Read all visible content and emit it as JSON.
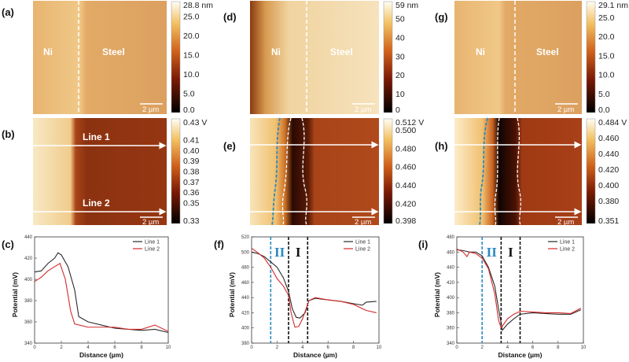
{
  "colors": {
    "line1": "#2a2a2a",
    "line2": "#d42a2a",
    "boundary_blue": "#2a8ac0",
    "boundary_black": "#111111"
  },
  "panels": {
    "a": {
      "letter": "(a)",
      "label_left": "Ni",
      "label_right": "Steel",
      "scale": "2 µm",
      "colorbar": [
        "28.8 nm",
        "25.0",
        "20.0",
        "15.0",
        "10.0",
        "5.0",
        "0.0"
      ],
      "cmin": 0,
      "cmax": 28.8
    },
    "b": {
      "letter": "(b)",
      "line1": "Line 1",
      "line2": "Line 2",
      "scale": "2 µm",
      "colorbar": [
        "0.43 V",
        "0.41",
        "0.40",
        "0.39",
        "0.38",
        "0.37",
        "0.36",
        "0.35",
        "0.33"
      ],
      "cmin": 0.33,
      "cmax": 0.43
    },
    "d": {
      "letter": "(d)",
      "label_left": "Ni",
      "label_right": "Steel",
      "scale": "2 µm",
      "colorbar": [
        "59 nm",
        "50",
        "40",
        "30",
        "20",
        "10",
        "0"
      ],
      "cmin": 0,
      "cmax": 59
    },
    "e": {
      "letter": "(e)",
      "scale": "2 µm",
      "colorbar": [
        "0.512 V",
        "0.500",
        "0.480",
        "0.460",
        "0.440",
        "0.420",
        "0.398"
      ],
      "cmin": 0.398,
      "cmax": 0.512
    },
    "g": {
      "letter": "(g)",
      "label_left": "Ni",
      "label_right": "Steel",
      "scale": "2 µm",
      "colorbar": [
        "29.1 nm",
        "25.0",
        "20.0",
        "15.0",
        "10.0",
        "5.0",
        "0.0"
      ],
      "cmin": 0,
      "cmax": 29.1
    },
    "h": {
      "letter": "(h)",
      "scale": "2 µm",
      "colorbar": [
        "0.484 V",
        "0.460",
        "0.440",
        "0.420",
        "0.400",
        "0.380",
        "0.351"
      ],
      "cmin": 0.351,
      "cmax": 0.484
    }
  },
  "chart_data": [
    {
      "panel": "(c)",
      "type": "line",
      "xlabel": "Distance (µm)",
      "ylabel": "Potential (mV)",
      "xlim": [
        0,
        10
      ],
      "ylim": [
        340,
        440
      ],
      "xticks": [
        0,
        2,
        4,
        6,
        8,
        10
      ],
      "yticks": [
        340,
        360,
        380,
        400,
        420,
        440
      ],
      "legend": "top-right",
      "grid": false,
      "boundaries": [],
      "region_labels": [],
      "series": [
        {
          "name": "Line 1",
          "x": [
            0,
            0.5,
            1,
            1.5,
            1.75,
            2,
            2.5,
            3,
            3.3,
            4,
            5,
            6,
            7,
            8,
            9,
            10
          ],
          "y": [
            407,
            408,
            415,
            420,
            425,
            423,
            412,
            390,
            365,
            360,
            357,
            354,
            353,
            352,
            353,
            350
          ]
        },
        {
          "name": "Line 2",
          "x": [
            0,
            0.5,
            1,
            1.5,
            1.9,
            2.3,
            2.7,
            3,
            4,
            5,
            6,
            7,
            8,
            9,
            10
          ],
          "y": [
            398,
            402,
            408,
            412,
            415,
            400,
            370,
            358,
            355,
            355,
            355,
            353,
            353,
            357,
            351
          ]
        }
      ]
    },
    {
      "panel": "(f)",
      "type": "line",
      "xlabel": "Distance (µm)",
      "ylabel": "Potential (mV)",
      "xlim": [
        0,
        10
      ],
      "ylim": [
        380,
        520
      ],
      "xticks": [
        0,
        2,
        4,
        6,
        8,
        10
      ],
      "yticks": [
        380,
        400,
        420,
        440,
        460,
        480,
        500,
        520
      ],
      "legend": "top-right",
      "grid": false,
      "boundaries": [
        {
          "x": 1.5,
          "color": "blue"
        },
        {
          "x": 2.9,
          "color": "black"
        },
        {
          "x": 4.4,
          "color": "black"
        }
      ],
      "region_labels": [
        {
          "text": "II",
          "x": 2.2,
          "color": "blue"
        },
        {
          "text": "I",
          "x": 3.65,
          "color": "black"
        }
      ],
      "series": [
        {
          "name": "Line 1",
          "x": [
            0,
            0.5,
            1,
            1.5,
            2,
            2.5,
            2.9,
            3.2,
            3.5,
            3.8,
            4.2,
            4.5,
            5,
            6,
            7,
            8,
            8.7,
            9,
            9.8
          ],
          "y": [
            500,
            498,
            494,
            487,
            480,
            466,
            448,
            425,
            414,
            413,
            420,
            436,
            439,
            437,
            435,
            432,
            430,
            434,
            435
          ]
        },
        {
          "name": "Line 2",
          "x": [
            0,
            0.5,
            1,
            1.5,
            2,
            2.5,
            2.9,
            3.1,
            3.4,
            3.7,
            4,
            4.5,
            5,
            6,
            7,
            8,
            9,
            9.8
          ],
          "y": [
            505,
            499,
            492,
            480,
            465,
            455,
            443,
            420,
            401,
            402,
            412,
            436,
            440,
            437,
            435,
            431,
            423,
            420
          ]
        }
      ]
    },
    {
      "panel": "(i)",
      "type": "line",
      "xlabel": "Distance (µm)",
      "ylabel": "Potential (mV)",
      "xlim": [
        0,
        10
      ],
      "ylim": [
        340,
        480
      ],
      "xticks": [
        0,
        2,
        4,
        6,
        8,
        10
      ],
      "yticks": [
        340,
        360,
        380,
        400,
        420,
        440,
        460,
        480
      ],
      "legend": "top-right",
      "grid": false,
      "boundaries": [
        {
          "x": 2.0,
          "color": "blue"
        },
        {
          "x": 3.5,
          "color": "black"
        },
        {
          "x": 5.0,
          "color": "black"
        }
      ],
      "region_labels": [
        {
          "text": "II",
          "x": 2.75,
          "color": "blue"
        },
        {
          "text": "I",
          "x": 4.25,
          "color": "black"
        }
      ],
      "series": [
        {
          "name": "Line 1",
          "x": [
            0,
            0.5,
            1,
            1.5,
            2,
            2.5,
            3,
            3.3,
            3.6,
            4,
            4.5,
            5,
            6,
            7,
            8,
            9,
            9.8
          ],
          "y": [
            463,
            462,
            460,
            460,
            455,
            440,
            415,
            385,
            357,
            365,
            372,
            378,
            380,
            379,
            378,
            378,
            384
          ]
        },
        {
          "name": "Line 2",
          "x": [
            0,
            0.5,
            0.8,
            1,
            1.5,
            2,
            2.5,
            3,
            3.3,
            3.5,
            4,
            4.5,
            5,
            6,
            7,
            8,
            9,
            9.8
          ],
          "y": [
            464,
            460,
            454,
            460,
            458,
            452,
            438,
            405,
            370,
            360,
            372,
            378,
            382,
            381,
            380,
            380,
            379,
            386
          ]
        }
      ]
    }
  ]
}
